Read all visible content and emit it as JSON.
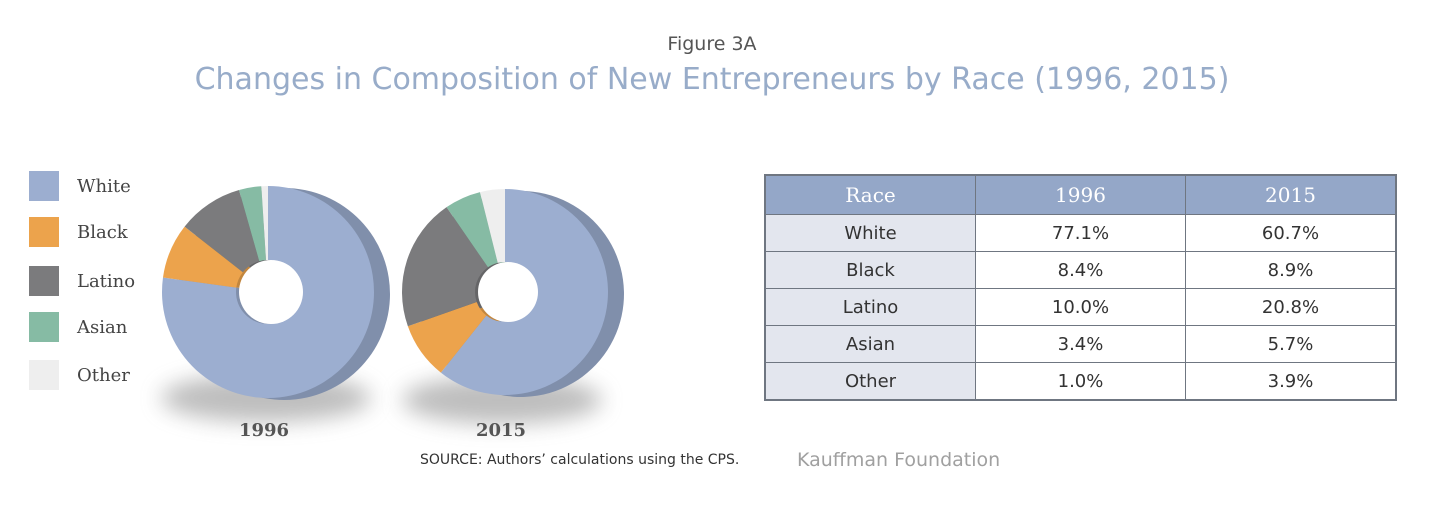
{
  "figure_label": "Figure 3A",
  "chart_data": {
    "type": "pie",
    "title": "Changes in Composition of New Entrepreneurs by Race (1996, 2015)",
    "categories": [
      "White",
      "Black",
      "Latino",
      "Asian",
      "Other"
    ],
    "colors": [
      "#9caed0",
      "#eca34c",
      "#7b7b7d",
      "#86bba4",
      "#eeeeee"
    ],
    "legend_position": "left",
    "series": [
      {
        "name": "1996",
        "values": [
          77.1,
          8.4,
          10.0,
          3.4,
          1.0
        ]
      },
      {
        "name": "2015",
        "values": [
          60.7,
          8.9,
          20.8,
          5.7,
          3.9
        ]
      }
    ]
  },
  "table": {
    "headers": [
      "Race",
      "1996",
      "2015"
    ],
    "rows": [
      [
        "White",
        "77.1%",
        "60.7%"
      ],
      [
        "Black",
        "8.4%",
        "8.9%"
      ],
      [
        "Latino",
        "10.0%",
        "20.8%"
      ],
      [
        "Asian",
        "3.4%",
        "5.7%"
      ],
      [
        "Other",
        "1.0%",
        "3.9%"
      ]
    ]
  },
  "source": "SOURCE: Authors’ calculations using the CPS.",
  "brand": "Kauffman Foundation"
}
